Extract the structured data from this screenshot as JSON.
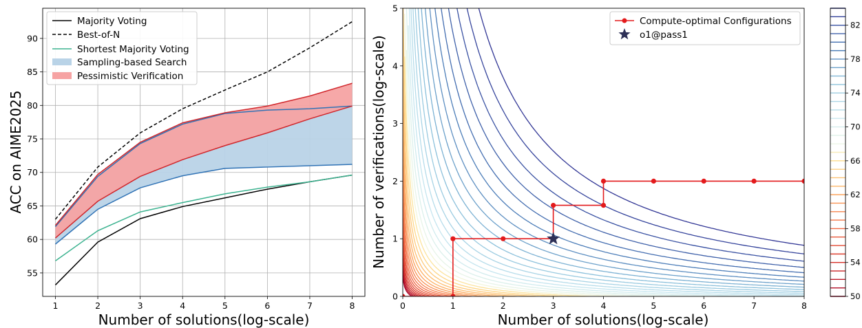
{
  "chart_data": [
    {
      "type": "line",
      "xlabel": "Number of solutions(log-scale)",
      "ylabel": "ACC on AIME2025",
      "xlim": [
        0.7,
        8.3
      ],
      "ylim": [
        51.5,
        94.5
      ],
      "xticks": [
        "1",
        "2",
        "3",
        "4",
        "5",
        "6",
        "7",
        "8"
      ],
      "yticks": [
        "55",
        "60",
        "65",
        "70",
        "75",
        "80",
        "85",
        "90"
      ],
      "grid": true,
      "legend_position": "top-left",
      "x": [
        1,
        2,
        3,
        4,
        5,
        6,
        7,
        8
      ],
      "series": [
        {
          "name": "Majority Voting",
          "style": "solid",
          "color": "#000000",
          "values": [
            53.2,
            59.6,
            63.1,
            64.9,
            66.2,
            67.5,
            68.6,
            69.6
          ]
        },
        {
          "name": "Best-of-N",
          "style": "dashed",
          "color": "#000000",
          "values": [
            63.0,
            70.8,
            75.9,
            79.5,
            82.3,
            85.0,
            88.6,
            92.5
          ]
        },
        {
          "name": "Shortest Majority Voting",
          "style": "solid",
          "color": "#3bb28f",
          "values": [
            56.8,
            61.3,
            64.1,
            65.5,
            66.8,
            67.8,
            68.6,
            69.6
          ]
        }
      ],
      "bands": [
        {
          "name": "Sampling-based Search",
          "fill": "#b9d3e7",
          "edge": "#2f72b5",
          "lower": [
            59.3,
            64.5,
            67.7,
            69.5,
            70.6,
            70.8,
            71.0,
            71.2
          ],
          "upper": [
            61.9,
            69.4,
            74.3,
            77.2,
            78.8,
            79.3,
            79.5,
            79.9
          ]
        },
        {
          "name": "Pessimistic Verification",
          "fill": "#f6a3a3",
          "edge": "#d0262b",
          "lower": [
            60.2,
            65.7,
            69.4,
            71.9,
            74.0,
            75.9,
            78.0,
            79.9
          ],
          "upper": [
            62.1,
            69.7,
            74.5,
            77.4,
            78.9,
            79.9,
            81.4,
            83.3
          ]
        }
      ]
    },
    {
      "type": "contour",
      "xlabel": "Number of solutions(log-scale)",
      "ylabel": "Number of verifications(log-scale)",
      "xlim": [
        0,
        8
      ],
      "ylim": [
        0,
        5
      ],
      "xticks": [
        "0",
        "1",
        "2",
        "3",
        "4",
        "5",
        "6",
        "7",
        "8"
      ],
      "yticks": [
        "0",
        "1",
        "2",
        "3",
        "4",
        "5"
      ],
      "legend_position": "top-right",
      "compute_optimal": {
        "name": "Compute-optimal Configurations",
        "color": "#e31a1c",
        "points": [
          [
            0,
            0
          ],
          [
            1,
            0
          ],
          [
            1,
            1
          ],
          [
            2,
            1
          ],
          [
            3,
            1
          ],
          [
            3,
            1.58
          ],
          [
            4,
            1.58
          ],
          [
            4,
            2
          ],
          [
            5,
            2
          ],
          [
            6,
            2
          ],
          [
            7,
            2
          ],
          [
            8,
            2
          ]
        ],
        "markers": [
          [
            0,
            0
          ],
          [
            1,
            0
          ],
          [
            1,
            1
          ],
          [
            2,
            1
          ],
          [
            3,
            1.58
          ],
          [
            4,
            1.58
          ],
          [
            4,
            2
          ],
          [
            5,
            2
          ],
          [
            6,
            2
          ],
          [
            7,
            2
          ],
          [
            8,
            2
          ]
        ]
      },
      "o1_point": {
        "name": "o1@pass1",
        "x": 3,
        "y": 1,
        "color": "#2d3057"
      },
      "colorbar": {
        "ticks": [
          "50",
          "54",
          "58",
          "62",
          "66",
          "70",
          "74",
          "78",
          "82"
        ],
        "range": [
          50,
          84
        ]
      }
    }
  ]
}
